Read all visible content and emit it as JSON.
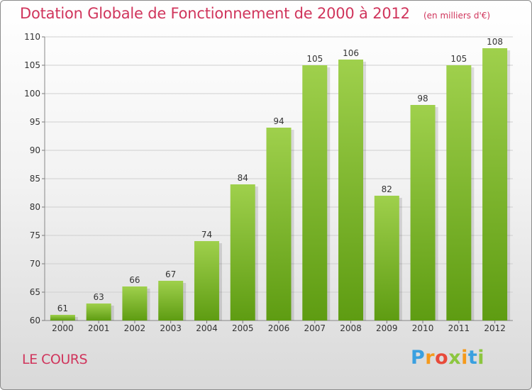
{
  "chart_data": {
    "type": "bar",
    "title": "Dotation Globale de Fonctionnement de 2000 à 2012",
    "subtitle": "(en milliers d'€)",
    "categories": [
      "2000",
      "2001",
      "2002",
      "2003",
      "2004",
      "2005",
      "2006",
      "2007",
      "2008",
      "2009",
      "2010",
      "2011",
      "2012"
    ],
    "values": [
      61,
      63,
      66,
      67,
      74,
      84,
      94,
      105,
      106,
      82,
      98,
      105,
      108
    ],
    "ylim": [
      60,
      110
    ],
    "yticks": [
      60,
      65,
      70,
      75,
      80,
      85,
      90,
      95,
      100,
      105,
      110
    ],
    "grid": true,
    "bar_color_top": "#9fd04c",
    "bar_color_bottom": "#5e9c12"
  },
  "footer": {
    "commune": "LE COURS",
    "logo_letters": [
      "P",
      "r",
      "o",
      "x",
      "i",
      "t",
      "i"
    ],
    "logo_colors": [
      "#3aa0e0",
      "#f59a1c",
      "#e84a3a",
      "#8cc63f",
      "#f59a1c",
      "#3aa0e0",
      "#8cc63f"
    ]
  }
}
